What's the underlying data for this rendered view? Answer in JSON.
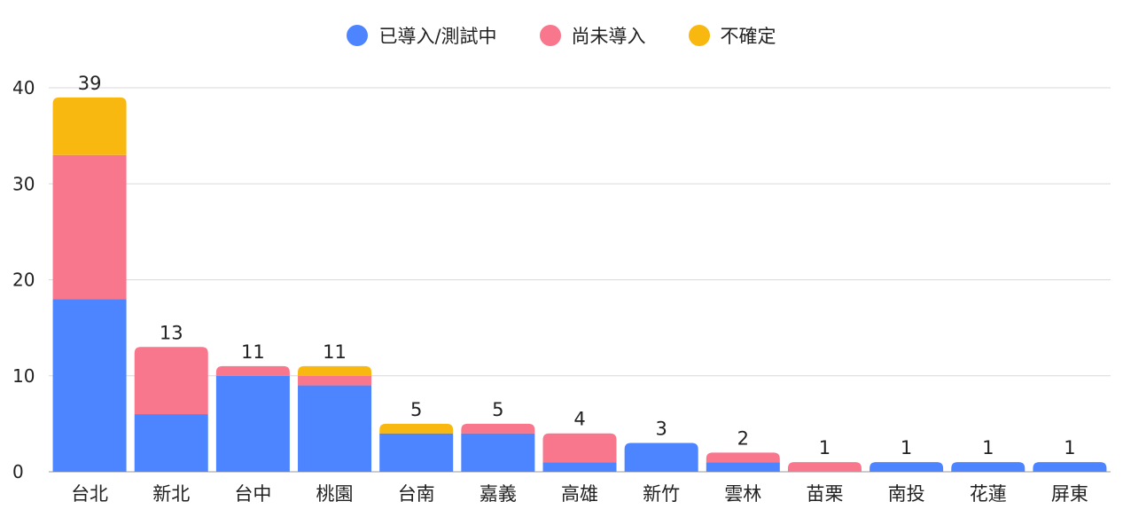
{
  "chart_data": {
    "type": "bar",
    "stacked": true,
    "categories": [
      "台北",
      "新北",
      "台中",
      "桃園",
      "台南",
      "嘉義",
      "高雄",
      "新竹",
      "雲林",
      "苗栗",
      "南投",
      "花蓮",
      "屏東"
    ],
    "series": [
      {
        "name": "已導入/測試中",
        "color": "#4d84ff",
        "values": [
          18,
          6,
          10,
          9,
          4,
          4,
          1,
          3,
          1,
          0,
          1,
          1,
          1
        ]
      },
      {
        "name": "尚未導入",
        "color": "#f8778d",
        "values": [
          15,
          7,
          1,
          1,
          0,
          1,
          3,
          0,
          1,
          1,
          0,
          0,
          0
        ]
      },
      {
        "name": "不確定",
        "color": "#f9b810",
        "values": [
          6,
          0,
          0,
          1,
          1,
          0,
          0,
          0,
          0,
          0,
          0,
          0,
          0
        ]
      }
    ],
    "totals": [
      "39",
      "13",
      "11",
      "11",
      "5",
      "5",
      "4",
      "3",
      "2",
      "1",
      "1",
      "1",
      "1"
    ],
    "yticks": [
      "0",
      "10",
      "20",
      "30",
      "40"
    ],
    "ylim": [
      0,
      40
    ],
    "grid": true,
    "legend_position": "top-center"
  }
}
